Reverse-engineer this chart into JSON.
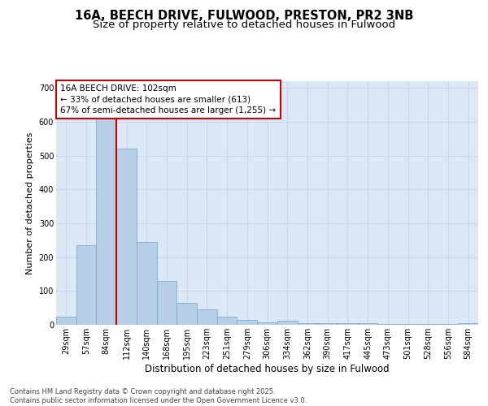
{
  "title": "16A, BEECH DRIVE, FULWOOD, PRESTON, PR2 3NB",
  "subtitle": "Size of property relative to detached houses in Fulwood",
  "xlabel": "Distribution of detached houses by size in Fulwood",
  "ylabel": "Number of detached properties",
  "categories": [
    "29sqm",
    "57sqm",
    "84sqm",
    "112sqm",
    "140sqm",
    "168sqm",
    "195sqm",
    "223sqm",
    "251sqm",
    "279sqm",
    "306sqm",
    "334sqm",
    "362sqm",
    "390sqm",
    "417sqm",
    "445sqm",
    "473sqm",
    "501sqm",
    "528sqm",
    "556sqm",
    "584sqm"
  ],
  "values": [
    25,
    235,
    610,
    520,
    245,
    130,
    65,
    45,
    25,
    15,
    8,
    12,
    5,
    5,
    5,
    5,
    2,
    3,
    2,
    2,
    5
  ],
  "bar_color": "#b8cfe8",
  "bar_edge_color": "#7aadd4",
  "grid_color": "#c8d8ec",
  "background_color": "#dce8f5",
  "red_line_color": "#cc0000",
  "annotation_text": "16A BEECH DRIVE: 102sqm\n← 33% of detached houses are smaller (613)\n67% of semi-detached houses are larger (1,255) →",
  "annotation_box_color": "#ffffff",
  "annotation_box_edge": "#cc0000",
  "footer_text": "Contains HM Land Registry data © Crown copyright and database right 2025.\nContains public sector information licensed under the Open Government Licence v3.0.",
  "ylim": [
    0,
    720
  ],
  "yticks": [
    0,
    100,
    200,
    300,
    400,
    500,
    600,
    700
  ],
  "title_fontsize": 10.5,
  "subtitle_fontsize": 9.5,
  "xlabel_fontsize": 8.5,
  "ylabel_fontsize": 8,
  "tick_fontsize": 7,
  "footer_fontsize": 6,
  "annotation_fontsize": 7.5
}
